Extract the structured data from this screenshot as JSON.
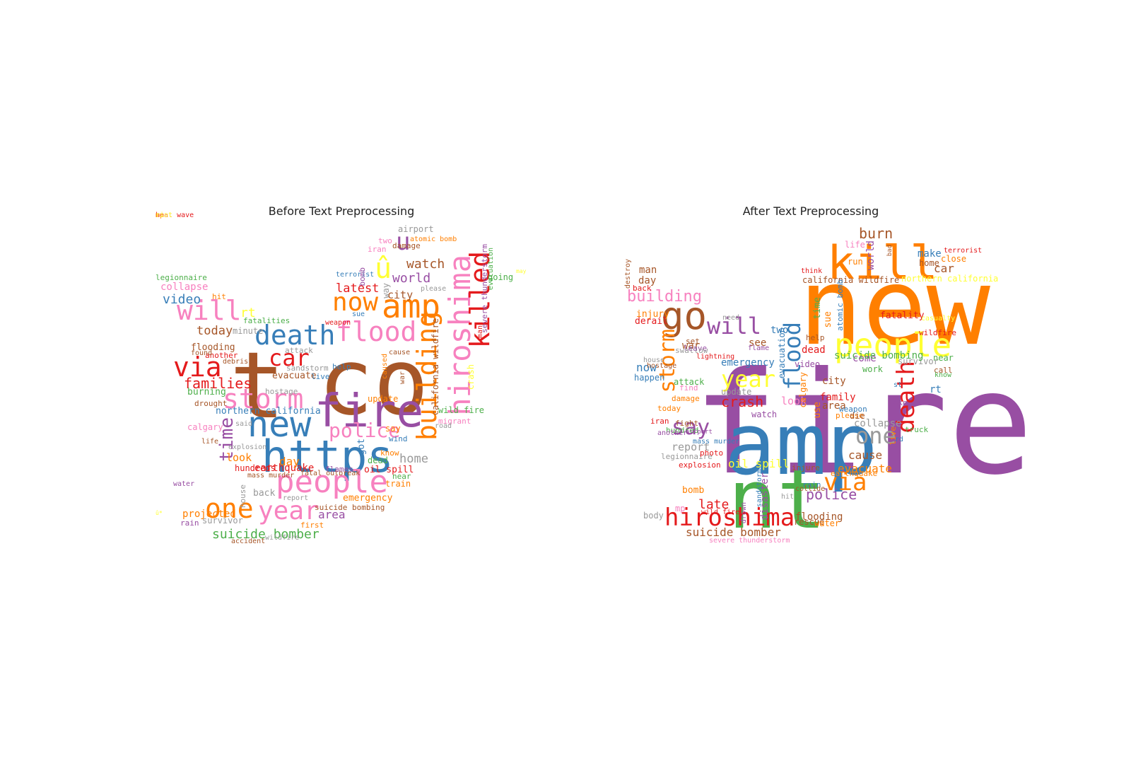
{
  "panels": [
    {
      "title": "Before Text Preprocessing",
      "words": [
        {
          "t": "t",
          "c": "#a65628"
        },
        {
          "t": "co",
          "c": "#a65628"
        },
        {
          "t": "https",
          "c": "#377eb8"
        },
        {
          "t": "fire",
          "c": "#984ea3"
        },
        {
          "t": "new",
          "c": "#377eb8"
        },
        {
          "t": "death",
          "c": "#377eb8"
        },
        {
          "t": "flood",
          "c": "#f781bf"
        },
        {
          "t": "amp",
          "c": "#ff7f00"
        },
        {
          "t": "hiroshima",
          "c": "#f781bf"
        },
        {
          "t": "killed",
          "c": "#e41a1c"
        },
        {
          "t": "building",
          "c": "#ff7f00"
        },
        {
          "t": "people",
          "c": "#f781bf"
        },
        {
          "t": "storm",
          "c": "#f781bf"
        },
        {
          "t": "will",
          "c": "#f781bf"
        },
        {
          "t": "via",
          "c": "#e41a1c"
        },
        {
          "t": "one",
          "c": "#ff7f00"
        },
        {
          "t": "year",
          "c": "#f781bf"
        },
        {
          "t": "now",
          "c": "#ff7f00"
        },
        {
          "t": "û",
          "c": "#ffff33"
        },
        {
          "t": "u",
          "c": "#984ea3"
        },
        {
          "t": "car",
          "c": "#e41a1c"
        },
        {
          "t": "police",
          "c": "#f781bf"
        },
        {
          "t": "families",
          "c": "#e41a1c"
        },
        {
          "t": "time",
          "c": "#984ea3"
        },
        {
          "t": "video",
          "c": "#377eb8"
        },
        {
          "t": "watch",
          "c": "#a65628"
        },
        {
          "t": "world",
          "c": "#984ea3"
        },
        {
          "t": "latest",
          "c": "#e41a1c"
        },
        {
          "t": "suicide bomber",
          "c": "#4daf4a"
        },
        {
          "t": "home",
          "c": "#999999"
        },
        {
          "t": "earthquake",
          "c": "#e41a1c"
        },
        {
          "t": "day",
          "c": "#ff7f00"
        },
        {
          "t": "today",
          "c": "#a65628"
        },
        {
          "t": "collapse",
          "c": "#f781bf"
        },
        {
          "t": "legionnaire",
          "c": "#4daf4a"
        },
        {
          "t": "northern california",
          "c": "#377eb8"
        },
        {
          "t": "california wildfire",
          "c": "#a65628"
        },
        {
          "t": "severe thunderstorm",
          "c": "#984ea3"
        },
        {
          "t": "city",
          "c": "#a65628"
        },
        {
          "t": "rt",
          "c": "#ffff33"
        },
        {
          "t": "oil spill",
          "c": "#e41a1c"
        },
        {
          "t": "area",
          "c": "#984ea3"
        },
        {
          "t": "emergency",
          "c": "#ff7f00"
        },
        {
          "t": "look",
          "c": "#ff7f00"
        },
        {
          "t": "dead",
          "c": "#4daf4a"
        },
        {
          "t": "evacuate",
          "c": "#a65628"
        },
        {
          "t": "burning",
          "c": "#4daf4a"
        },
        {
          "t": "flooding",
          "c": "#a65628"
        },
        {
          "t": "hundreds",
          "c": "#e41a1c"
        },
        {
          "t": "mass murder",
          "c": "#a65628"
        },
        {
          "t": "fatal outbreak",
          "c": "#a65628"
        },
        {
          "t": "suicide bombing",
          "c": "#a65628"
        },
        {
          "t": "accident",
          "c": "#a65628"
        },
        {
          "t": "wildfire",
          "c": "#999999"
        },
        {
          "t": "back",
          "c": "#999999"
        },
        {
          "t": "survivor",
          "c": "#999999"
        },
        {
          "t": "rain",
          "c": "#984ea3"
        },
        {
          "t": "first",
          "c": "#ff7f00"
        },
        {
          "t": "report",
          "c": "#999999"
        },
        {
          "t": "explosion",
          "c": "#999999"
        },
        {
          "t": "calgary",
          "c": "#f781bf"
        },
        {
          "t": "drought",
          "c": "#a65628"
        },
        {
          "t": "another",
          "c": "#e41a1c"
        },
        {
          "t": "water",
          "c": "#984ea3"
        },
        {
          "t": "airport",
          "c": "#999999"
        },
        {
          "t": "two",
          "c": "#f781bf"
        },
        {
          "t": "iran",
          "c": "#f781bf"
        },
        {
          "t": "damage",
          "c": "#a65628"
        },
        {
          "t": "going",
          "c": "#4daf4a"
        },
        {
          "t": "help",
          "c": "#377eb8"
        },
        {
          "t": "update",
          "c": "#ff7f00"
        },
        {
          "t": "attack",
          "c": "#999999"
        },
        {
          "t": "sandstorm",
          "c": "#999999"
        },
        {
          "t": "hostage",
          "c": "#999999"
        },
        {
          "t": "fatalities",
          "c": "#4daf4a"
        },
        {
          "t": "minute",
          "c": "#999999"
        },
        {
          "t": "hit",
          "c": "#ff7f00"
        },
        {
          "t": "life",
          "c": "#a65628"
        },
        {
          "t": "said",
          "c": "#999999"
        },
        {
          "t": "wind",
          "c": "#377eb8"
        },
        {
          "t": "train",
          "c": "#ff7f00"
        },
        {
          "t": "near",
          "c": "#4daf4a"
        },
        {
          "t": "flames",
          "c": "#984ea3"
        },
        {
          "t": "wild fire",
          "c": "#4daf4a"
        },
        {
          "t": "migrant",
          "c": "#f781bf"
        },
        {
          "t": "please",
          "c": "#999999"
        },
        {
          "t": "weapon",
          "c": "#e41a1c"
        },
        {
          "t": "terrorist",
          "c": "#377eb8"
        },
        {
          "t": "sue",
          "c": "#377eb8"
        },
        {
          "t": "got",
          "c": "#377eb8"
        },
        {
          "t": "know",
          "c": "#ff7f00"
        },
        {
          "t": "say",
          "c": "#ff7f00"
        },
        {
          "t": "house",
          "c": "#999999"
        },
        {
          "t": "crash",
          "c": "#ffff33"
        },
        {
          "t": "man",
          "c": "#e41a1c"
        },
        {
          "t": "evacuation",
          "c": "#4daf4a"
        },
        {
          "t": "atomic bomb",
          "c": "#ff7f00"
        },
        {
          "t": "bomb",
          "c": "#984ea3"
        },
        {
          "t": "cause",
          "c": "#a65628"
        },
        {
          "t": "war",
          "c": "#a65628"
        },
        {
          "t": "caused",
          "c": "#ff7f00"
        },
        {
          "t": "debris",
          "c": "#a65628"
        },
        {
          "t": "found",
          "c": "#a65628"
        },
        {
          "t": "way",
          "c": "#999999"
        },
        {
          "t": "projected",
          "c": "#ff7f00"
        },
        {
          "t": "live",
          "c": "#377eb8"
        },
        {
          "t": "û*",
          "c": "#ffff33"
        },
        {
          "t": "road",
          "c": "#999999"
        },
        {
          "t": "may",
          "c": "#ffff33"
        },
        {
          "t": "heat wave",
          "c": "#e41a1c"
        },
        {
          "t": "mp",
          "c": "#ff7f00"
        },
        {
          "t": "riot",
          "c": "#ffff33"
        }
      ]
    },
    {
      "title": "After Text Preprocessing",
      "words": [
        {
          "t": "fire",
          "c": "#984ea3"
        },
        {
          "t": "new",
          "c": "#ff7f00"
        },
        {
          "t": "amp",
          "c": "#377eb8"
        },
        {
          "t": "nt",
          "c": "#4daf4a"
        },
        {
          "t": "kill",
          "c": "#ff7f00"
        },
        {
          "t": "people",
          "c": "#ffff33"
        },
        {
          "t": "go",
          "c": "#a65628"
        },
        {
          "t": "hiroshima",
          "c": "#e41a1c"
        },
        {
          "t": "storm",
          "c": "#ff7f00"
        },
        {
          "t": "year",
          "c": "#ffff33"
        },
        {
          "t": "death",
          "c": "#e41a1c"
        },
        {
          "t": "via",
          "c": "#ff7f00"
        },
        {
          "t": "will",
          "c": "#984ea3"
        },
        {
          "t": "one",
          "c": "#999999"
        },
        {
          "t": "flood",
          "c": "#377eb8"
        },
        {
          "t": "say",
          "c": "#984ea3"
        },
        {
          "t": "building",
          "c": "#f781bf"
        },
        {
          "t": "crash",
          "c": "#e41a1c"
        },
        {
          "t": "burn",
          "c": "#a65628"
        },
        {
          "t": "police",
          "c": "#984ea3"
        },
        {
          "t": "suicide bomber",
          "c": "#a65628"
        },
        {
          "t": "late",
          "c": "#e41a1c"
        },
        {
          "t": "world",
          "c": "#984ea3"
        },
        {
          "t": "life",
          "c": "#f781bf"
        },
        {
          "t": "make",
          "c": "#377eb8"
        },
        {
          "t": "home",
          "c": "#a65628"
        },
        {
          "t": "car",
          "c": "#a65628"
        },
        {
          "t": "close",
          "c": "#ff7f00"
        },
        {
          "t": "terrorist",
          "c": "#e41a1c"
        },
        {
          "t": "california wildfire",
          "c": "#a65628"
        },
        {
          "t": "northern california",
          "c": "#ffff33"
        },
        {
          "t": "think",
          "c": "#e41a1c"
        },
        {
          "t": "run",
          "c": "#ff7f00"
        },
        {
          "t": "time",
          "c": "#4daf4a"
        },
        {
          "t": "atomic bomb",
          "c": "#377eb8"
        },
        {
          "t": "fatality",
          "c": "#e41a1c"
        },
        {
          "t": "wildfire",
          "c": "#e41a1c"
        },
        {
          "t": "two",
          "c": "#377eb8"
        },
        {
          "t": "man",
          "c": "#a65628"
        },
        {
          "t": "day",
          "c": "#a65628"
        },
        {
          "t": "destroy",
          "c": "#a65628"
        },
        {
          "t": "back",
          "c": "#e41a1c"
        },
        {
          "t": "injury",
          "c": "#ff7f00"
        },
        {
          "t": "derail",
          "c": "#e41a1c"
        },
        {
          "t": "need",
          "c": "#999999"
        },
        {
          "t": "war",
          "c": "#a65628"
        },
        {
          "t": "leave",
          "c": "#984ea3"
        },
        {
          "t": "see",
          "c": "#a65628"
        },
        {
          "t": "flame",
          "c": "#984ea3"
        },
        {
          "t": "emergency",
          "c": "#377eb8"
        },
        {
          "t": "dead",
          "c": "#e41a1c"
        },
        {
          "t": "help",
          "c": "#a65628"
        },
        {
          "t": "video",
          "c": "#984ea3"
        },
        {
          "t": "work",
          "c": "#4daf4a"
        },
        {
          "t": "come",
          "c": "#984ea3"
        },
        {
          "t": "survivor",
          "c": "#999999"
        },
        {
          "t": "near",
          "c": "#4daf4a"
        },
        {
          "t": "call",
          "c": "#a65628"
        },
        {
          "t": "know",
          "c": "#4daf4a"
        },
        {
          "t": "rt",
          "c": "#377eb8"
        },
        {
          "t": "city",
          "c": "#a65628"
        },
        {
          "t": "family",
          "c": "#e41a1c"
        },
        {
          "t": "area",
          "c": "#a65628"
        },
        {
          "t": "please",
          "c": "#ff7f00"
        },
        {
          "t": "die",
          "c": "#a65628"
        },
        {
          "t": "take",
          "c": "#984ea3"
        },
        {
          "t": "collapse",
          "c": "#999999"
        },
        {
          "t": "truck",
          "c": "#4daf4a"
        },
        {
          "t": "cause",
          "c": "#a65628"
        },
        {
          "t": "evacuate",
          "c": "#ff7f00"
        },
        {
          "t": "earthquake",
          "c": "#ff7f00"
        },
        {
          "t": "look",
          "c": "#f781bf"
        },
        {
          "t": "update",
          "c": "#999999"
        },
        {
          "t": "watch",
          "c": "#984ea3"
        },
        {
          "t": "attack",
          "c": "#4daf4a"
        },
        {
          "t": "find",
          "c": "#f781bf"
        },
        {
          "t": "damage",
          "c": "#ff7f00"
        },
        {
          "t": "today",
          "c": "#ff7f00"
        },
        {
          "t": "now",
          "c": "#377eb8"
        },
        {
          "t": "happen",
          "c": "#377eb8"
        },
        {
          "t": "iran",
          "c": "#e41a1c"
        },
        {
          "t": "report",
          "c": "#999999"
        },
        {
          "t": "legionnaire",
          "c": "#999999"
        },
        {
          "t": "fight",
          "c": "#a65628"
        },
        {
          "t": "photo",
          "c": "#e41a1c"
        },
        {
          "t": "explosion",
          "c": "#e41a1c"
        },
        {
          "t": "oil spill",
          "c": "#ffff33"
        },
        {
          "t": "bomb",
          "c": "#ff7f00"
        },
        {
          "t": "hit",
          "c": "#999999"
        },
        {
          "t": "body",
          "c": "#999999"
        },
        {
          "t": "wild fire",
          "c": "#e41a1c"
        },
        {
          "t": "flooding",
          "c": "#a65628"
        },
        {
          "t": "rescue",
          "c": "#a65628"
        },
        {
          "t": "water",
          "c": "#ff7f00"
        },
        {
          "t": "rain",
          "c": "#377eb8"
        },
        {
          "t": "collide",
          "c": "#a65628"
        },
        {
          "t": "injure",
          "c": "#a65628"
        },
        {
          "t": "disaster",
          "c": "#984ea3"
        },
        {
          "t": "mp",
          "c": "#f781bf"
        },
        {
          "t": "severe thunderstorm",
          "c": "#f781bf"
        },
        {
          "t": "evacuation",
          "c": "#377eb8"
        },
        {
          "t": "calgary",
          "c": "#ff7f00"
        },
        {
          "t": "suicide bombing",
          "c": "#4daf4a"
        },
        {
          "t": "sue",
          "c": "#ff7f00"
        },
        {
          "t": "use",
          "c": "#ff7f00"
        },
        {
          "t": "weapon",
          "c": "#377eb8"
        },
        {
          "t": "live",
          "c": "#ff7f00"
        },
        {
          "t": "set",
          "c": "#a65628"
        },
        {
          "t": "swallow",
          "c": "#999999"
        },
        {
          "t": "lightning",
          "c": "#e41a1c"
        },
        {
          "t": "mass murder",
          "c": "#377eb8"
        },
        {
          "t": "hundred",
          "c": "#4daf4a"
        },
        {
          "t": "another",
          "c": "#984ea3"
        },
        {
          "t": "bad",
          "c": "#a65628"
        },
        {
          "t": "casualty",
          "c": "#ffff33"
        },
        {
          "t": "house",
          "c": "#999999"
        },
        {
          "t": "hostage",
          "c": "#a65628"
        },
        {
          "t": "sandstorm",
          "c": "#377eb8"
        },
        {
          "t": "st",
          "c": "#377eb8"
        },
        {
          "t": "rd",
          "c": "#377eb8"
        },
        {
          "t": "airport",
          "c": "#984ea3"
        },
        {
          "t": "drown",
          "c": "#984ea3"
        }
      ]
    }
  ]
}
